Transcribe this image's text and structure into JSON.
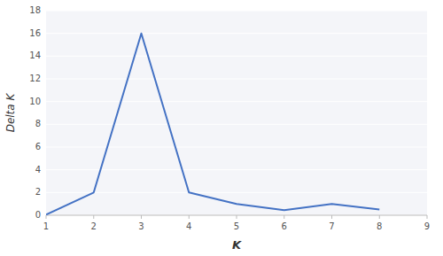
{
  "chart_data": {
    "type": "line",
    "x": [
      1,
      2,
      3,
      4,
      5,
      6,
      7,
      8
    ],
    "values": [
      0.05,
      2.0,
      16.0,
      2.0,
      1.0,
      0.45,
      1.0,
      0.5
    ],
    "color": "#4472C4",
    "xlabel": "K",
    "ylabel": "Delta K",
    "xlim": [
      1,
      9
    ],
    "ylim": [
      0,
      18
    ],
    "xticks": [
      1,
      2,
      3,
      4,
      5,
      6,
      7,
      8,
      9
    ],
    "yticks": [
      0,
      2,
      4,
      6,
      8,
      10,
      12,
      14,
      16,
      18
    ],
    "grid": true
  }
}
